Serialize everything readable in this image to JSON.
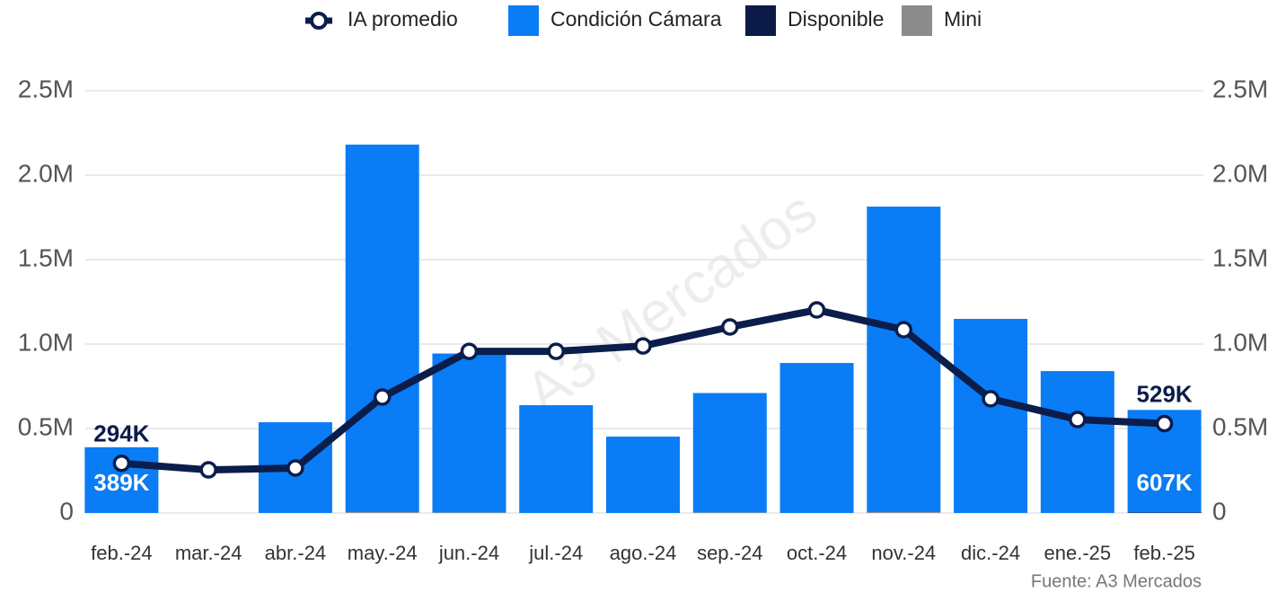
{
  "chart_data": {
    "type": "bar",
    "categories": [
      "feb.-24",
      "mar.-24",
      "abr.-24",
      "may.-24",
      "jun.-24",
      "jul.-24",
      "ago.-24",
      "sep.-24",
      "oct.-24",
      "nov.-24",
      "dic.-24",
      "ene.-25",
      "feb.-25"
    ],
    "series": [
      {
        "name": "Mini",
        "color": "#8c8c8c",
        "values": [
          0,
          0,
          0,
          5000,
          3000,
          0,
          0,
          3000,
          0,
          5000,
          0,
          0,
          0
        ]
      },
      {
        "name": "Disponible",
        "color": "#0b1a47",
        "values": [
          0,
          0,
          0,
          0,
          0,
          0,
          0,
          0,
          0,
          0,
          0,
          0,
          3000
        ]
      },
      {
        "name": "Condición Cámara",
        "color": "#0a7cf5",
        "values": [
          389000,
          0,
          537000,
          2176000,
          941000,
          638000,
          452000,
          707000,
          888000,
          1809000,
          1149000,
          840000,
          607000
        ],
        "value_labels": [
          "389K",
          null,
          null,
          null,
          null,
          null,
          null,
          null,
          null,
          null,
          null,
          null,
          "607K"
        ]
      },
      {
        "name": "IA promedio",
        "type": "line",
        "axis": "y2",
        "color": "#0b1d4a",
        "values": [
          294000,
          255000,
          266000,
          686000,
          957000,
          957000,
          989000,
          1101000,
          1202000,
          1085000,
          676000,
          553000,
          529000
        ],
        "value_labels": [
          "294K",
          null,
          null,
          null,
          null,
          null,
          null,
          null,
          null,
          null,
          null,
          null,
          "529K"
        ]
      }
    ],
    "legend_order": [
      3,
      2,
      1,
      0
    ],
    "ylim": [
      0,
      2500000
    ],
    "yticks": [
      0,
      {
        "value": 500000,
        "label": "0.5M"
      },
      {
        "value": 1000000,
        "label": "1.0M"
      },
      {
        "value": 1500000,
        "label": "1.5M"
      },
      {
        "value": 2000000,
        "label": "2.0M"
      },
      {
        "value": 2500000,
        "label": "2.5M"
      }
    ],
    "y2lim": [
      0,
      2500000
    ],
    "y2ticks": [
      0,
      {
        "value": 500000,
        "label": "0.5M"
      },
      {
        "value": 1000000,
        "label": "1.0M"
      },
      {
        "value": 1500000,
        "label": "1.5M"
      },
      {
        "value": 2000000,
        "label": "2.0M"
      },
      {
        "value": 2500000,
        "label": "2.5M"
      }
    ],
    "grid": true,
    "legend_position": "top",
    "source": "Fuente: A3 Mercados",
    "watermark": "A3 Mercados"
  }
}
